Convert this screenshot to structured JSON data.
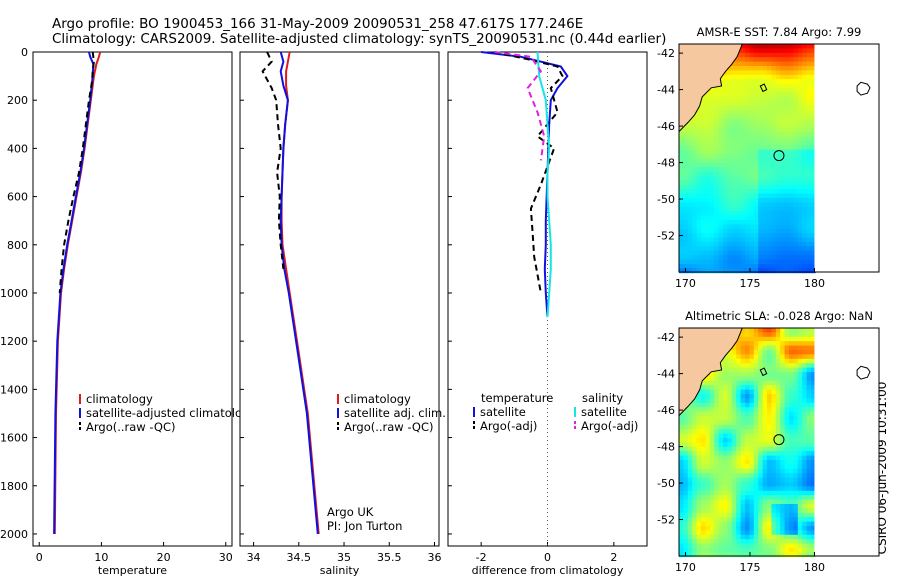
{
  "header": {
    "line1": "Argo profile: BO 1900453_166 31-May-2009 20090531_258 47.617S 177.246E",
    "line2": "Climatology: CARS2009. Satellite-adjusted climatology: synTS_20090531.nc (0.44d earlier)"
  },
  "footer_stamp": "CSIRO 06-Jun-2009 10:31:00",
  "colors": {
    "climatology": "#e01b1b",
    "satellite": "#1010e0",
    "argo": "#000000",
    "salinity_satellite": "#14e6e6",
    "salinity_argo": "#e020e0",
    "land": "#f5c8a0",
    "zero_line": "#555555"
  },
  "chart_data": [
    {
      "id": "temperature",
      "type": "line",
      "xlabel": "temperature",
      "ylabel": "",
      "xlim": [
        -1,
        31
      ],
      "ylim": [
        0,
        2050
      ],
      "y_reversed": true,
      "xticks": [
        0,
        10,
        20,
        30
      ],
      "yticks": [
        0,
        200,
        400,
        600,
        800,
        1000,
        1200,
        1400,
        1600,
        1800,
        2000
      ],
      "legend": [
        "climatology",
        "satellite-adjusted climatology",
        "Argo(..raw -QC)"
      ],
      "legend_position": "lower-right",
      "series": [
        {
          "name": "climatology",
          "color": "#e01b1b",
          "dash": "",
          "x": [
            9.8,
            9.6,
            9.2,
            8.8,
            8.3,
            7.8,
            7.3,
            6.7,
            6.0,
            5.3,
            4.6,
            4.0,
            3.5,
            3.0,
            2.7,
            2.5
          ],
          "y": [
            0,
            20,
            50,
            100,
            200,
            300,
            400,
            500,
            600,
            700,
            800,
            900,
            1000,
            1200,
            1500,
            2000
          ]
        },
        {
          "name": "satellite-adjusted climatology",
          "color": "#1010e0",
          "dash": "",
          "x": [
            8.0,
            8.2,
            8.7,
            8.6,
            8.2,
            7.7,
            7.2,
            6.6,
            5.9,
            5.2,
            4.5,
            3.9,
            3.4,
            2.9,
            2.6,
            2.4
          ],
          "y": [
            0,
            20,
            50,
            100,
            200,
            300,
            400,
            500,
            600,
            700,
            800,
            900,
            1000,
            1200,
            1500,
            2000
          ]
        },
        {
          "name": "Argo(..raw -QC)",
          "color": "#000000",
          "dash": "6,4",
          "x": [
            8.6,
            8.8,
            8.6,
            8.5,
            8.0,
            7.5,
            7.0,
            6.4,
            5.5,
            4.7,
            4.0,
            3.6,
            3.3
          ],
          "y": [
            0,
            40,
            80,
            120,
            200,
            300,
            400,
            500,
            600,
            700,
            800,
            900,
            1000
          ]
        }
      ]
    },
    {
      "id": "salinity",
      "type": "line",
      "xlabel": "salinity",
      "ylabel": "",
      "xlim": [
        33.85,
        36.05
      ],
      "ylim": [
        0,
        2050
      ],
      "y_reversed": true,
      "xticks": [
        34,
        34.5,
        35,
        35.5,
        36
      ],
      "legend": [
        "climatology",
        "satellite adj. clim.",
        "Argo(..raw -QC)"
      ],
      "legend_position": "lower-right",
      "annotation": [
        "Argo UK",
        "PI: Jon Turton"
      ],
      "series": [
        {
          "name": "climatology",
          "color": "#e01b1b",
          "dash": "",
          "x": [
            34.4,
            34.38,
            34.36,
            34.36,
            34.38,
            34.35,
            34.33,
            34.32,
            34.31,
            34.31,
            34.32,
            34.36,
            34.4,
            34.48,
            34.6,
            34.72
          ],
          "y": [
            0,
            40,
            80,
            140,
            200,
            300,
            400,
            500,
            600,
            700,
            800,
            900,
            1000,
            1200,
            1500,
            2000
          ]
        },
        {
          "name": "satellite adj. clim.",
          "color": "#1010e0",
          "dash": "",
          "x": [
            34.3,
            34.33,
            34.3,
            34.33,
            34.38,
            34.35,
            34.33,
            34.32,
            34.31,
            34.3,
            34.31,
            34.34,
            34.39,
            34.47,
            34.59,
            34.71
          ],
          "y": [
            0,
            40,
            80,
            140,
            200,
            300,
            400,
            500,
            600,
            700,
            800,
            900,
            1000,
            1200,
            1500,
            2000
          ]
        },
        {
          "name": "Argo(..raw -QC)",
          "color": "#000000",
          "dash": "6,4",
          "x": [
            34.15,
            34.2,
            34.1,
            34.2,
            34.25,
            34.27,
            34.3,
            34.26,
            34.29,
            34.28,
            34.3,
            34.33
          ],
          "y": [
            0,
            40,
            80,
            150,
            200,
            300,
            400,
            500,
            600,
            700,
            800,
            900
          ]
        }
      ]
    },
    {
      "id": "difference",
      "type": "line",
      "xlabel": "difference from climatology",
      "ylabel": "",
      "xlim": [
        -3.0,
        3.0
      ],
      "ylim": [
        0,
        2050
      ],
      "y_reversed": true,
      "xticks": [
        -2,
        0,
        2
      ],
      "legend": [
        "temperature",
        "satellite",
        "Argo(-adj)",
        "salinity",
        "satellite",
        "Argo(-adj)"
      ],
      "legend_position": "lower",
      "series": [
        {
          "name": "satellite",
          "group": "temperature",
          "color": "#1010e0",
          "dash": "",
          "x": [
            -2.0,
            -0.8,
            0.4,
            0.6,
            0.3,
            0.1,
            0.05,
            0.0,
            -0.05,
            -0.05,
            -0.08,
            -0.05,
            0.0
          ],
          "y": [
            0,
            20,
            60,
            100,
            150,
            200,
            300,
            500,
            700,
            800,
            900,
            1000,
            1100
          ]
        },
        {
          "name": "Argo(-adj)",
          "group": "temperature",
          "color": "#000000",
          "dash": "6,4",
          "x": [
            -1.6,
            -0.6,
            0.3,
            0.45,
            0.1,
            0.3,
            -0.3,
            0.2,
            -0.2,
            -0.5,
            -0.45,
            -0.4,
            -0.2
          ],
          "y": [
            0,
            30,
            60,
            100,
            150,
            250,
            350,
            400,
            550,
            650,
            750,
            850,
            1000
          ]
        },
        {
          "name": "satellite",
          "group": "salinity",
          "color": "#14e6e6",
          "dash": "",
          "x": [
            -0.3,
            -0.25,
            -0.05,
            0.0,
            0.05,
            0.0,
            0.0,
            0.05,
            0.1,
            0.1,
            0.05,
            0.0
          ],
          "y": [
            0,
            100,
            200,
            300,
            400,
            500,
            600,
            700,
            800,
            900,
            1000,
            1100
          ]
        },
        {
          "name": "Argo(-adj)",
          "group": "salinity",
          "color": "#e020e0",
          "dash": "6,4",
          "x": [
            -1.6,
            -0.5,
            -0.2,
            -0.6,
            -0.3,
            -0.1,
            -0.2
          ],
          "y": [
            0,
            20,
            80,
            150,
            250,
            350,
            450
          ]
        }
      ]
    },
    {
      "id": "sst-map",
      "type": "heatmap",
      "title": "AMSR-E SST: 7.84 Argo: 7.99",
      "xticks": [
        170,
        175,
        180
      ],
      "yticks": [
        -42,
        -44,
        -46,
        -48,
        -50,
        -52
      ],
      "xlim": [
        169.5,
        185
      ],
      "ylim": [
        -54,
        -41.5
      ],
      "marker": {
        "lon": 177.246,
        "lat": -47.617
      }
    },
    {
      "id": "sla-map",
      "type": "heatmap",
      "title": "Altimetric SLA: -0.028 Argo: NaN",
      "xticks": [
        170,
        175,
        180
      ],
      "yticks": [
        -42,
        -44,
        -46,
        -48,
        -50,
        -52
      ],
      "xlim": [
        169.5,
        185
      ],
      "ylim": [
        -54,
        -41.5
      ],
      "marker": {
        "lon": 177.246,
        "lat": -47.617
      }
    }
  ]
}
